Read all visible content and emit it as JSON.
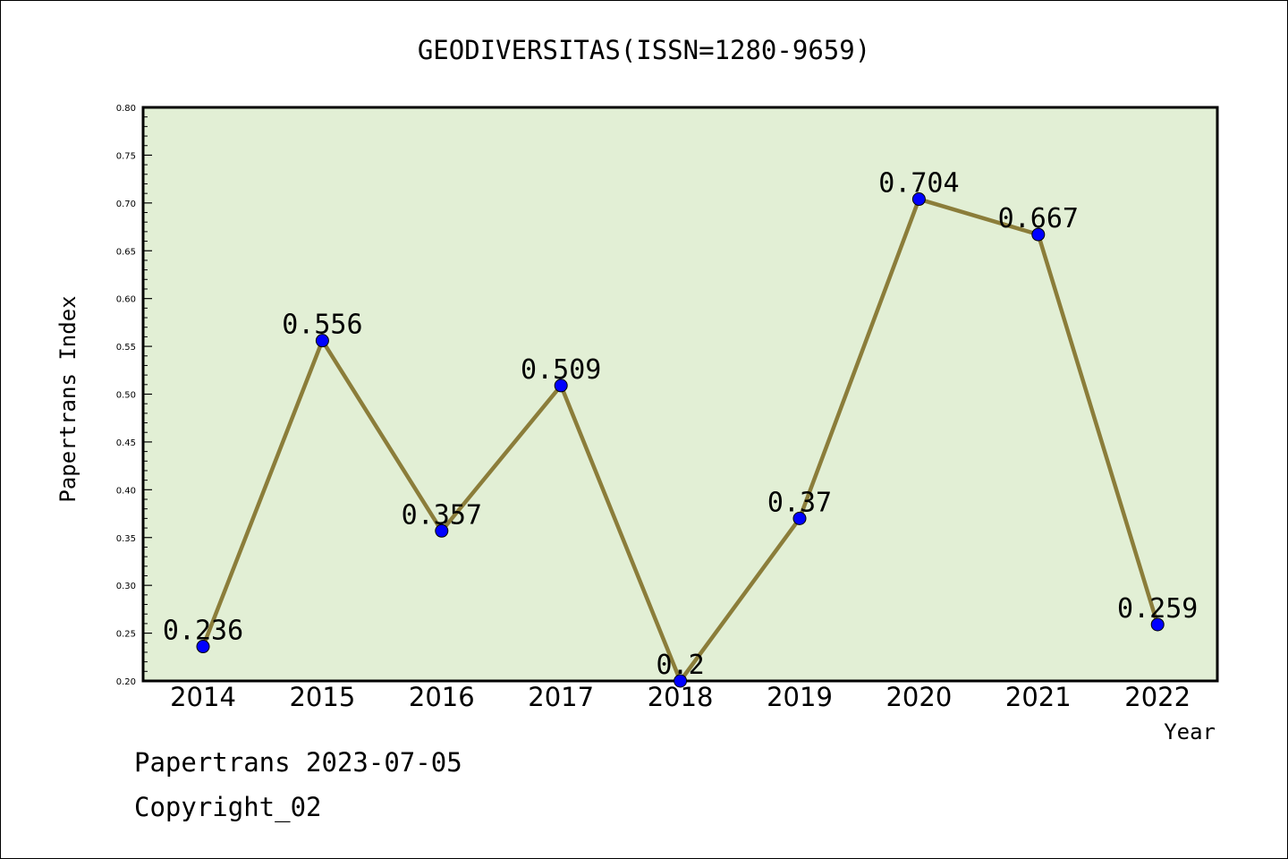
{
  "chart_data": {
    "type": "line",
    "title": "GEODIVERSITAS(ISSN=1280-9659)",
    "xlabel": "Year",
    "ylabel": "Papertrans Index",
    "categories": [
      "2014",
      "2015",
      "2016",
      "2017",
      "2018",
      "2019",
      "2020",
      "2021",
      "2022"
    ],
    "series": [
      {
        "values": [
          0.236,
          0.556,
          0.357,
          0.509,
          0.2,
          0.37,
          0.704,
          0.667,
          0.259
        ],
        "data_labels": [
          "0.236",
          "0.556",
          "0.357",
          "0.509",
          "0.2",
          "0.37",
          "0.704",
          "0.667",
          "0.259"
        ]
      }
    ],
    "ylim": [
      0.2,
      0.8
    ],
    "yticks": [
      "0.20",
      "0.25",
      "0.30",
      "0.35",
      "0.40",
      "0.45",
      "0.50",
      "0.55",
      "0.60",
      "0.65",
      "0.70",
      "0.75",
      "0.80"
    ],
    "grid": false,
    "colors": {
      "plot_bg": "#e2efd5",
      "line": "#8b7d3a",
      "marker": "#0000ff"
    }
  },
  "footer": {
    "line1": "Papertrans 2023-07-05",
    "line2": "Copyright_02"
  }
}
